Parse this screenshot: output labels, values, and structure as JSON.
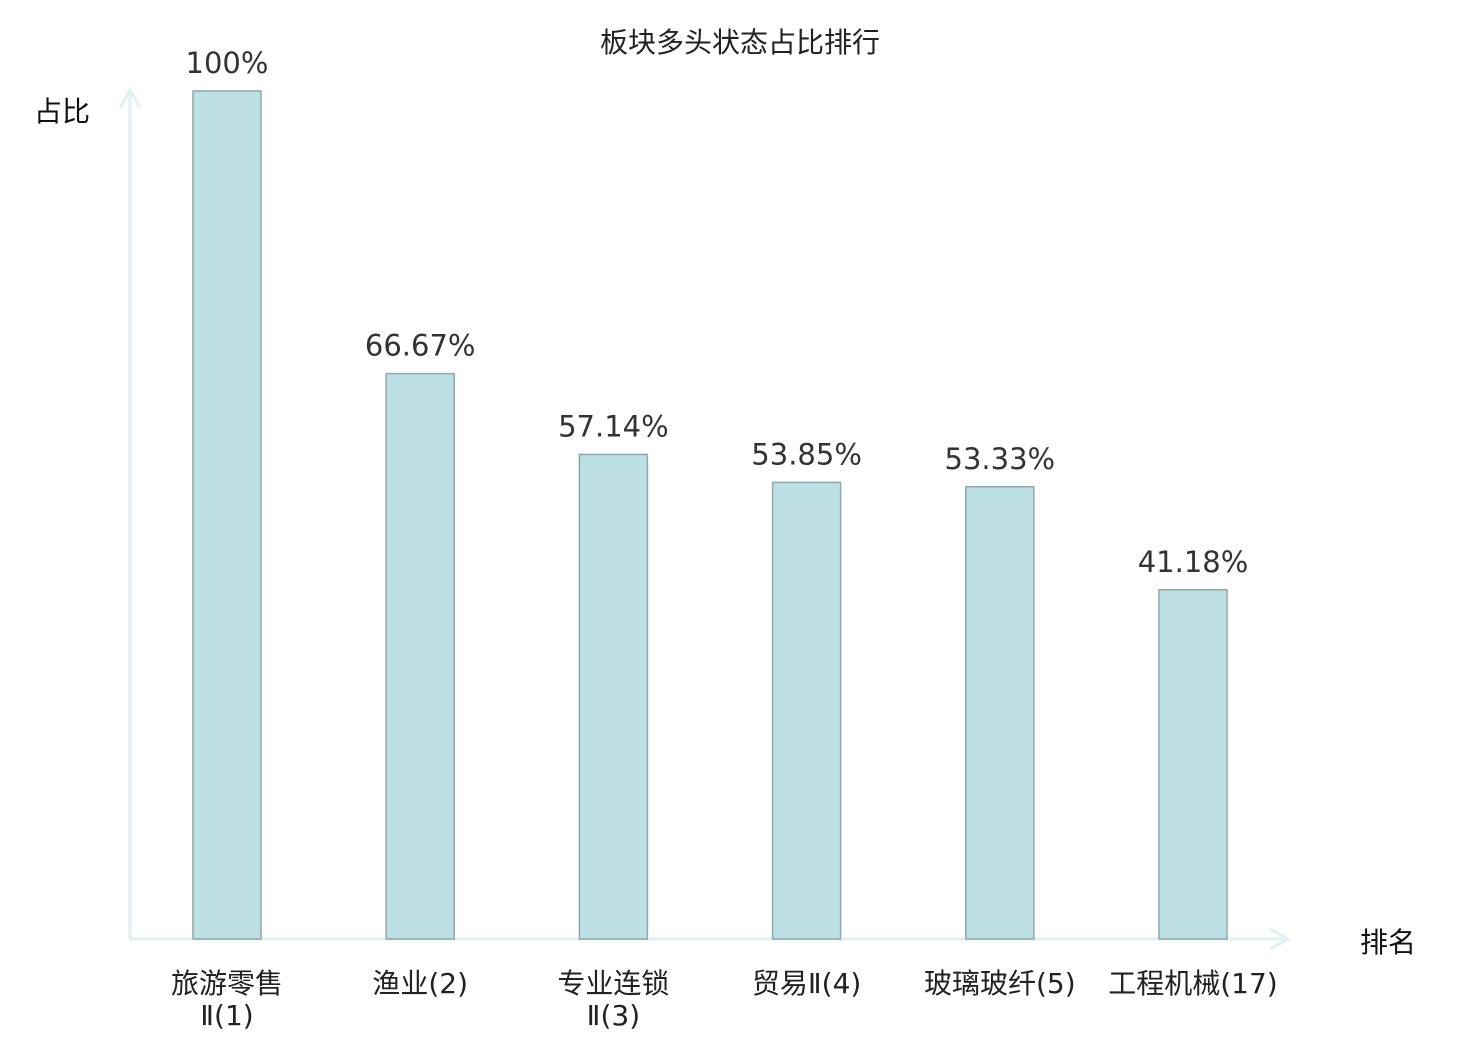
{
  "chart_data": {
    "type": "bar",
    "title": "板块多头状态占比排行",
    "xlabel": "排名",
    "ylabel": "占比",
    "categories": [
      [
        "旅游零售",
        "Ⅱ(1)"
      ],
      [
        "渔业(2)"
      ],
      [
        "专业连锁",
        "Ⅱ(3)"
      ],
      [
        "贸易Ⅱ(4)"
      ],
      [
        "玻璃玻纤(5)"
      ],
      [
        "工程机械(17)"
      ]
    ],
    "values": [
      100,
      66.67,
      57.14,
      53.85,
      53.33,
      41.18
    ],
    "value_labels": [
      "100%",
      "66.67%",
      "57.14%",
      "53.85%",
      "53.33%",
      "41.18%"
    ],
    "highlight_index": 5,
    "ylim": [
      0,
      100
    ],
    "grid": false,
    "colors": {
      "bar_fill": "#bce0e3",
      "bar_stroke": "#8fa8aa",
      "axis": "#dff2ef",
      "highlight_text": "#e00000",
      "text": "#222222"
    }
  }
}
